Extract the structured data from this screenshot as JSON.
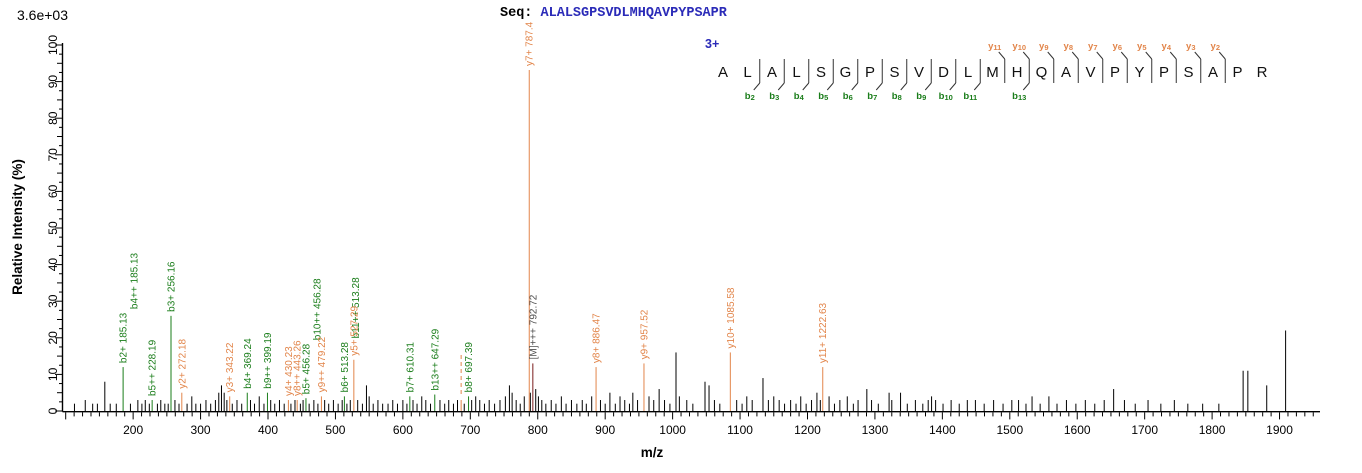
{
  "header": {
    "intensity_scale": "3.6e+03",
    "seq_label": "Seq:",
    "sequence": "ALALSGPSVDLMHQAVPYPSAPR",
    "charge": "3+"
  },
  "axes": {
    "x_label": "m/z",
    "y_label": "Relative  Intensity (%)",
    "x_tick_labels": [
      200,
      300,
      400,
      500,
      600,
      700,
      800,
      900,
      1000,
      1100,
      1200,
      1300,
      1400,
      1500,
      1600,
      1700,
      1800,
      1900
    ],
    "y_tick_labels": [
      0,
      10,
      20,
      30,
      40,
      50,
      60,
      70,
      80,
      90,
      100
    ],
    "x_range": [
      96,
      1960
    ],
    "y_range": [
      0,
      100
    ]
  },
  "ladder": {
    "b_ions": [
      {
        "n": 2,
        "cut": 2
      },
      {
        "n": 3,
        "cut": 3
      },
      {
        "n": 4,
        "cut": 4
      },
      {
        "n": 5,
        "cut": 5
      },
      {
        "n": 6,
        "cut": 6
      },
      {
        "n": 7,
        "cut": 7
      },
      {
        "n": 8,
        "cut": 8
      },
      {
        "n": 9,
        "cut": 9
      },
      {
        "n": 10,
        "cut": 10
      },
      {
        "n": 11,
        "cut": 11
      },
      {
        "n": 13,
        "cut": 13
      }
    ],
    "y_ions": [
      {
        "n": 11,
        "cut": 12
      },
      {
        "n": 10,
        "cut": 13
      },
      {
        "n": 9,
        "cut": 14
      },
      {
        "n": 8,
        "cut": 15
      },
      {
        "n": 7,
        "cut": 16
      },
      {
        "n": 6,
        "cut": 17
      },
      {
        "n": 5,
        "cut": 18
      },
      {
        "n": 4,
        "cut": 19
      },
      {
        "n": 3,
        "cut": 20
      },
      {
        "n": 2,
        "cut": 21
      }
    ]
  },
  "chart_data": {
    "type": "bar",
    "subtype": "ms2-peptide-fragmentation-spectrum",
    "title": "",
    "xlabel": "m/z",
    "ylabel": "Relative  Intensity (%)",
    "xlim": [
      96,
      1960
    ],
    "ylim": [
      0,
      100
    ],
    "grid": false,
    "colors": {
      "b_ion": "#1a7d1a",
      "y_ion": "#e2854a",
      "precursor_peak": "#7a1c1c",
      "precursor_text": "#4f4f4f",
      "noise": "#000000",
      "sequence_text": "#2b2bb8"
    },
    "labeled_peaks": [
      {
        "mz": 185.13,
        "intensity": 12,
        "ion": "b",
        "label": "b2+ 185.13",
        "label2": "b4++ 185.13"
      },
      {
        "mz": 228.19,
        "intensity": 3,
        "ion": "b",
        "label": "b5++ 228.19"
      },
      {
        "mz": 256.16,
        "intensity": 26,
        "ion": "b",
        "label": "b3+ 256.16"
      },
      {
        "mz": 272.18,
        "intensity": 5,
        "ion": "y",
        "label": "y2+ 272.18"
      },
      {
        "mz": 343.22,
        "intensity": 4,
        "ion": "y",
        "label": "y3+ 343.22"
      },
      {
        "mz": 369.24,
        "intensity": 5,
        "ion": "b",
        "label": "b4+ 369.24"
      },
      {
        "mz": 399.19,
        "intensity": 5,
        "ion": "b",
        "label": "b9++ 399.19"
      },
      {
        "mz": 430.23,
        "intensity": 3,
        "ion": "y",
        "label": "y4+ 430.23"
      },
      {
        "mz": 443.26,
        "intensity": 3,
        "ion": "y",
        "label": "y8++ 443.26"
      },
      {
        "mz": 456.28,
        "intensity": 3.5,
        "ion": "b",
        "label": "b5+ 456.28",
        "label2": "b10++ 456.28"
      },
      {
        "mz": 479.22,
        "intensity": 4,
        "ion": "y",
        "label": "y9++ 479.22"
      },
      {
        "mz": 513.28,
        "intensity": 4,
        "ion": "b",
        "label": "b6+ 513.28",
        "label2": "b11++ 513.28"
      },
      {
        "mz": 527.29,
        "intensity": 14,
        "ion": "y",
        "label": "y5+ 527.29"
      },
      {
        "mz": 610.31,
        "intensity": 4,
        "ion": "b",
        "label": "b7+ 610.31"
      },
      {
        "mz": 647.29,
        "intensity": 4.5,
        "ion": "b",
        "label": "b13++ 647.29"
      },
      {
        "mz": 686.4,
        "intensity": 3,
        "ion": "y",
        "label": "",
        "dashed": true
      },
      {
        "mz": 697.39,
        "intensity": 4,
        "ion": "b",
        "label": "b8+ 697.39"
      },
      {
        "mz": 787.4,
        "intensity": 100,
        "ion": "y",
        "label": "y7+ 787.4"
      },
      {
        "mz": 792.72,
        "intensity": 13,
        "ion": "M",
        "label": "[M]+++ 792.72"
      },
      {
        "mz": 886.47,
        "intensity": 12,
        "ion": "y",
        "label": "y8+ 886.47"
      },
      {
        "mz": 957.52,
        "intensity": 13,
        "ion": "y",
        "label": "y9+ 957.52"
      },
      {
        "mz": 1085.58,
        "intensity": 16,
        "ion": "y",
        "label": "y10+ 1085.58"
      },
      {
        "mz": 1222.63,
        "intensity": 12,
        "ion": "y",
        "label": "y11+ 1222.63"
      }
    ],
    "noise_peaks": [
      [
        113,
        2
      ],
      [
        129,
        3
      ],
      [
        140,
        2
      ],
      [
        147,
        2
      ],
      [
        158,
        8
      ],
      [
        166,
        2
      ],
      [
        175,
        2
      ],
      [
        196,
        2
      ],
      [
        207,
        3
      ],
      [
        213,
        2
      ],
      [
        218,
        3
      ],
      [
        224,
        2
      ],
      [
        236,
        2
      ],
      [
        241,
        3
      ],
      [
        247,
        2
      ],
      [
        252,
        2
      ],
      [
        262,
        3
      ],
      [
        268,
        2
      ],
      [
        280,
        2
      ],
      [
        287,
        4
      ],
      [
        293,
        2
      ],
      [
        300,
        2
      ],
      [
        308,
        3
      ],
      [
        315,
        2
      ],
      [
        322,
        3
      ],
      [
        327,
        5
      ],
      [
        331,
        7
      ],
      [
        335,
        5
      ],
      [
        339,
        3
      ],
      [
        347,
        2
      ],
      [
        354,
        3
      ],
      [
        361,
        2
      ],
      [
        374,
        3
      ],
      [
        380,
        2
      ],
      [
        387,
        4
      ],
      [
        394,
        2
      ],
      [
        404,
        3
      ],
      [
        410,
        2
      ],
      [
        417,
        3
      ],
      [
        424,
        2
      ],
      [
        434,
        2
      ],
      [
        440,
        3
      ],
      [
        448,
        2
      ],
      [
        452,
        3
      ],
      [
        461,
        2
      ],
      [
        468,
        3
      ],
      [
        474,
        2
      ],
      [
        484,
        3
      ],
      [
        490,
        2
      ],
      [
        497,
        3
      ],
      [
        504,
        2
      ],
      [
        510,
        3
      ],
      [
        517,
        2
      ],
      [
        522,
        3
      ],
      [
        533,
        3
      ],
      [
        540,
        2
      ],
      [
        546,
        7
      ],
      [
        550,
        4
      ],
      [
        556,
        2
      ],
      [
        563,
        3
      ],
      [
        570,
        2
      ],
      [
        578,
        2
      ],
      [
        585,
        3
      ],
      [
        592,
        2
      ],
      [
        600,
        3
      ],
      [
        606,
        2
      ],
      [
        615,
        3
      ],
      [
        621,
        2
      ],
      [
        628,
        4
      ],
      [
        634,
        3
      ],
      [
        641,
        2
      ],
      [
        655,
        3
      ],
      [
        662,
        2
      ],
      [
        668,
        3
      ],
      [
        675,
        2
      ],
      [
        681,
        3
      ],
      [
        691,
        2
      ],
      [
        702,
        3
      ],
      [
        708,
        4
      ],
      [
        714,
        3
      ],
      [
        721,
        2
      ],
      [
        728,
        3
      ],
      [
        736,
        2
      ],
      [
        744,
        3
      ],
      [
        752,
        4
      ],
      [
        758,
        7
      ],
      [
        762,
        5
      ],
      [
        768,
        3
      ],
      [
        774,
        2
      ],
      [
        780,
        4
      ],
      [
        789,
        5
      ],
      [
        797,
        6
      ],
      [
        801,
        4
      ],
      [
        806,
        3
      ],
      [
        812,
        2
      ],
      [
        820,
        3
      ],
      [
        827,
        2
      ],
      [
        835,
        4
      ],
      [
        842,
        2
      ],
      [
        850,
        3
      ],
      [
        858,
        2
      ],
      [
        866,
        3
      ],
      [
        872,
        2
      ],
      [
        880,
        4
      ],
      [
        893,
        3
      ],
      [
        900,
        2
      ],
      [
        907,
        5
      ],
      [
        915,
        2
      ],
      [
        922,
        4
      ],
      [
        929,
        3
      ],
      [
        936,
        2
      ],
      [
        941,
        5
      ],
      [
        948,
        3
      ],
      [
        965,
        4
      ],
      [
        972,
        3
      ],
      [
        980,
        6
      ],
      [
        988,
        3
      ],
      [
        996,
        2
      ],
      [
        1005,
        16
      ],
      [
        1010,
        4
      ],
      [
        1021,
        3
      ],
      [
        1030,
        2
      ],
      [
        1048,
        8
      ],
      [
        1054,
        7
      ],
      [
        1062,
        3
      ],
      [
        1070,
        2
      ],
      [
        1095,
        3
      ],
      [
        1103,
        2
      ],
      [
        1110,
        4
      ],
      [
        1118,
        3
      ],
      [
        1134,
        9
      ],
      [
        1142,
        3
      ],
      [
        1150,
        4
      ],
      [
        1158,
        3
      ],
      [
        1166,
        2
      ],
      [
        1175,
        3
      ],
      [
        1183,
        2
      ],
      [
        1190,
        4
      ],
      [
        1198,
        2
      ],
      [
        1206,
        3
      ],
      [
        1214,
        5
      ],
      [
        1219,
        3
      ],
      [
        1232,
        4
      ],
      [
        1240,
        2
      ],
      [
        1248,
        3
      ],
      [
        1259,
        4
      ],
      [
        1268,
        2
      ],
      [
        1275,
        3
      ],
      [
        1288,
        6
      ],
      [
        1295,
        3
      ],
      [
        1305,
        2
      ],
      [
        1321,
        5
      ],
      [
        1325,
        3
      ],
      [
        1338,
        5
      ],
      [
        1348,
        2
      ],
      [
        1360,
        3
      ],
      [
        1371,
        2
      ],
      [
        1379,
        3
      ],
      [
        1384,
        4
      ],
      [
        1390,
        3
      ],
      [
        1401,
        2
      ],
      [
        1413,
        3
      ],
      [
        1425,
        2
      ],
      [
        1437,
        3
      ],
      [
        1449,
        3
      ],
      [
        1462,
        2
      ],
      [
        1476,
        3
      ],
      [
        1490,
        2
      ],
      [
        1503,
        3
      ],
      [
        1513,
        3
      ],
      [
        1524,
        2
      ],
      [
        1533,
        4
      ],
      [
        1545,
        2
      ],
      [
        1558,
        4
      ],
      [
        1570,
        2
      ],
      [
        1584,
        3
      ],
      [
        1598,
        2
      ],
      [
        1612,
        3
      ],
      [
        1626,
        2
      ],
      [
        1640,
        3
      ],
      [
        1654,
        6
      ],
      [
        1670,
        3
      ],
      [
        1686,
        2
      ],
      [
        1705,
        3
      ],
      [
        1724,
        2
      ],
      [
        1744,
        3
      ],
      [
        1764,
        2
      ],
      [
        1786,
        2
      ],
      [
        1810,
        2
      ],
      [
        1846,
        11
      ],
      [
        1853,
        11
      ],
      [
        1881,
        7
      ],
      [
        1909,
        22
      ]
    ]
  }
}
